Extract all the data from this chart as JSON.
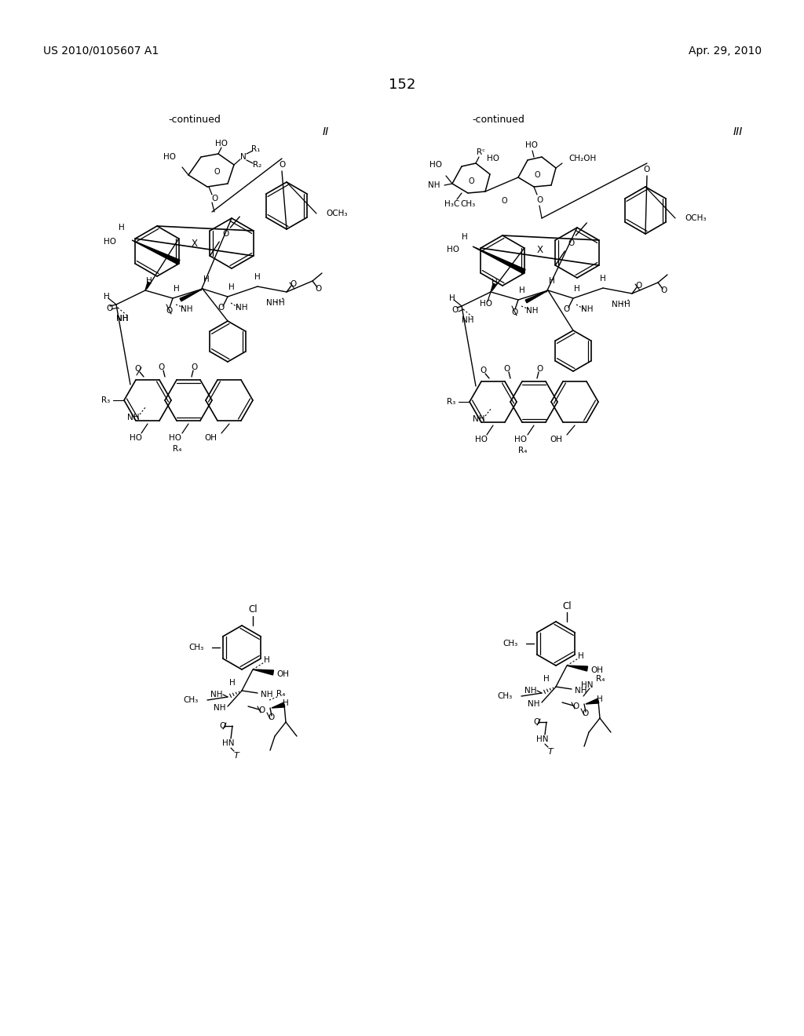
{
  "page_number": "152",
  "patent_number": "US 2010/0105607 A1",
  "patent_date": "Apr. 29, 2010",
  "background_color": "#ffffff",
  "fig_width": 10.24,
  "fig_height": 13.2,
  "dpi": 100,
  "continued_label": "-continued",
  "schema_II": "II",
  "schema_III": "III",
  "header_fontsize": 10,
  "page_num_fontsize": 13
}
